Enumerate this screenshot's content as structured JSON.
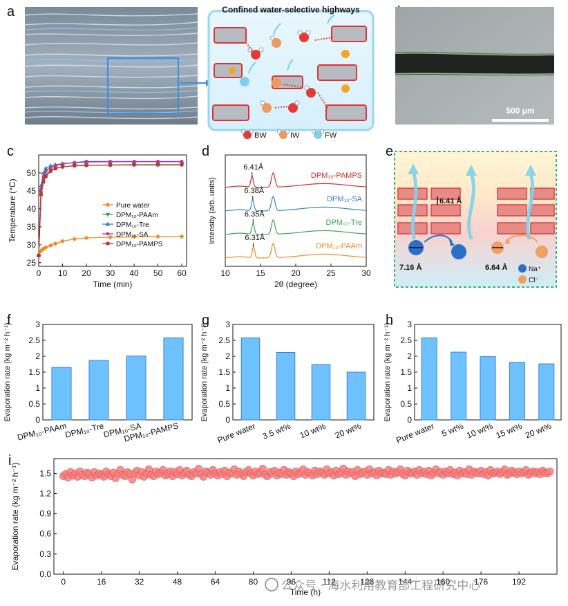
{
  "panels": {
    "a": "a",
    "b": "b",
    "c": "c",
    "d": "d",
    "e": "e",
    "f": "f",
    "g": "g",
    "h": "h",
    "i": "i"
  },
  "panel_a": {
    "title": "Confined water-selective highways",
    "legend": [
      {
        "label": "BW",
        "color": "#e53935"
      },
      {
        "label": "IW",
        "color": "#ef9a5a"
      },
      {
        "label": "FW",
        "color": "#7fd0ee"
      }
    ]
  },
  "panel_b": {
    "scale_bar": "500 μm"
  },
  "panel_e": {
    "spacing_label": "6.41 Å",
    "na_size": "7.16 Å",
    "cl_size": "6.64 Å",
    "legend_na": "Na⁺",
    "legend_cl": "Cl⁻"
  },
  "colors": {
    "orange": "#f08a24",
    "green": "#3aa655",
    "blue": "#3b7fc4",
    "magenta": "#b03a9a",
    "red": "#c8302e",
    "bar_fill": "#6ec2ff",
    "bar_stroke": "#3d7fd6",
    "marker_i": "#f47f7f"
  },
  "chart_data": [
    {
      "id": "c",
      "type": "line",
      "xlabel": "Time (min)",
      "ylabel": "Temperature (°C)",
      "xlim": [
        0,
        62
      ],
      "ylim": [
        24,
        55
      ],
      "xticks": [
        "0",
        "10",
        "20",
        "30",
        "40",
        "50",
        "60"
      ],
      "yticks": [
        "25",
        "30",
        "35",
        "40",
        "45",
        "50"
      ],
      "legend_position": "lower-right",
      "series": [
        {
          "name": "Pure water",
          "color": "#f08a24",
          "marker": "diamond",
          "x": [
            0,
            1,
            2,
            3,
            5,
            7,
            10,
            15,
            20,
            30,
            40,
            50,
            60
          ],
          "y": [
            27.0,
            28.3,
            28.9,
            29.3,
            29.8,
            30.3,
            31.0,
            31.6,
            31.9,
            32.1,
            32.2,
            32.3,
            32.3
          ]
        },
        {
          "name": "DPM₁₀-PAAm",
          "color": "#3aa655",
          "marker": "down-triangle",
          "x": [
            0,
            1,
            2,
            3,
            5,
            7,
            10,
            15,
            20,
            30,
            40,
            50,
            60
          ],
          "y": [
            27.0,
            44.5,
            48.0,
            49.5,
            50.8,
            51.3,
            51.7,
            52.0,
            52.1,
            52.2,
            52.2,
            52.2,
            52.2
          ]
        },
        {
          "name": "DPM₁₀-Tre",
          "color": "#3b7fc4",
          "marker": "up-triangle",
          "x": [
            0,
            1,
            2,
            3,
            5,
            7,
            10,
            15,
            20,
            30,
            40,
            50,
            60
          ],
          "y": [
            27.0,
            46.5,
            50.0,
            51.3,
            52.0,
            52.3,
            52.6,
            52.8,
            53.0,
            53.1,
            53.1,
            53.1,
            53.1
          ]
        },
        {
          "name": "DPM₁₀-SA",
          "color": "#b03a9a",
          "marker": "circle",
          "x": [
            0,
            1,
            2,
            3,
            5,
            7,
            10,
            15,
            20,
            30,
            40,
            50,
            60
          ],
          "y": [
            27.0,
            45.5,
            49.0,
            50.5,
            51.5,
            52.0,
            52.5,
            52.9,
            53.2,
            53.2,
            53.2,
            53.2,
            53.2
          ]
        },
        {
          "name": "DPM₁₀-PAMPS",
          "color": "#c8302e",
          "marker": "square",
          "x": [
            0,
            1,
            2,
            3,
            5,
            7,
            10,
            15,
            20,
            30,
            40,
            50,
            60
          ],
          "y": [
            27.0,
            44.0,
            47.5,
            49.0,
            50.5,
            51.2,
            51.7,
            52.0,
            52.1,
            52.2,
            52.3,
            52.3,
            52.3
          ]
        }
      ]
    },
    {
      "id": "d",
      "type": "line",
      "xlabel": "2θ (degree)",
      "ylabel": "Intensity (arb. units)",
      "xlim": [
        10,
        30
      ],
      "xticks": [
        "10",
        "15",
        "20",
        "25",
        "30"
      ],
      "series": [
        {
          "name": "DPM₁₀-PAMPS",
          "color": "#c8302e",
          "peak1": 13.8,
          "d_label": "6.41Å",
          "offset": 3
        },
        {
          "name": "DPM₁₀-SA",
          "color": "#3b7fc4",
          "peak1": 13.9,
          "d_label": "6.38Å",
          "offset": 2
        },
        {
          "name": "DPM₁₀-Tre",
          "color": "#3aa655",
          "peak1": 13.95,
          "d_label": "6.35Å",
          "offset": 1
        },
        {
          "name": "DPM₁₀-PAAm",
          "color": "#f08a24",
          "peak1": 14.0,
          "d_label": "6.31Å",
          "offset": 0
        }
      ]
    },
    {
      "id": "f",
      "type": "bar",
      "ylabel": "Evaporation rate (kg m⁻² h⁻¹)",
      "ylim": [
        0,
        3
      ],
      "yticks": [
        "0",
        "0.5",
        "1",
        "1.5",
        "2",
        "2.5",
        "3"
      ],
      "categories": [
        "DPM₁₀-PAAm",
        "DPM₁₀-Tre",
        "DPM₁₀-SA",
        "DPM₁₀-PAMPS"
      ],
      "values": [
        1.65,
        1.87,
        2.01,
        2.58
      ]
    },
    {
      "id": "g",
      "type": "bar",
      "ylabel": "Evaporation rate (kg m⁻² h⁻¹)",
      "ylim": [
        0,
        3
      ],
      "yticks": [
        "0",
        "0.5",
        "1",
        "1.5",
        "2",
        "2.5",
        "3"
      ],
      "categories": [
        "Pure water",
        "3.5 wt%",
        "10 wt%",
        "20 wt%"
      ],
      "values": [
        2.58,
        2.12,
        1.74,
        1.5
      ]
    },
    {
      "id": "h",
      "type": "bar",
      "ylabel": "Evaporation rate (kg m⁻² h⁻¹)",
      "ylim": [
        0,
        3
      ],
      "yticks": [
        "0",
        "0.5",
        "1",
        "1.5",
        "2",
        "2.5",
        "3"
      ],
      "categories": [
        "Pure water",
        "5 wt%",
        "10 wt%",
        "15 wt%",
        "20 wt%"
      ],
      "values": [
        2.58,
        2.13,
        1.99,
        1.81,
        1.76
      ]
    },
    {
      "id": "i",
      "type": "scatter",
      "xlabel": "Time (h)",
      "ylabel": "Evaporation rate (kg m⁻² h⁻¹)",
      "xlim": [
        -4,
        208
      ],
      "ylim": [
        0,
        1.72
      ],
      "xticks": [
        "0",
        "16",
        "32",
        "48",
        "64",
        "80",
        "96",
        "112",
        "128",
        "144",
        "160",
        "176",
        "192"
      ],
      "yticks": [
        "0.0",
        "0.3",
        "0.6",
        "0.9",
        "1.2",
        "1.5"
      ],
      "x_start": 0,
      "x_step": 1,
      "y": [
        1.46,
        1.49,
        1.44,
        1.52,
        1.47,
        1.5,
        1.45,
        1.53,
        1.48,
        1.46,
        1.51,
        1.49,
        1.44,
        1.52,
        1.47,
        1.5,
        1.48,
        1.45,
        1.53,
        1.49,
        1.46,
        1.51,
        1.43,
        1.5,
        1.55,
        1.48,
        1.46,
        1.52,
        1.49,
        1.41,
        1.5,
        1.54,
        1.47,
        1.52,
        1.45,
        1.5,
        1.56,
        1.48,
        1.46,
        1.53,
        1.49,
        1.51,
        1.55,
        1.47,
        1.5,
        1.53,
        1.46,
        1.52,
        1.49,
        1.55,
        1.47,
        1.51,
        1.54,
        1.48,
        1.46,
        1.52,
        1.5,
        1.57,
        1.49,
        1.45,
        1.53,
        1.51,
        1.48,
        1.55,
        1.5,
        1.47,
        1.52,
        1.49,
        1.54,
        1.46,
        1.51,
        1.5,
        1.56,
        1.48,
        1.53,
        1.49,
        1.46,
        1.52,
        1.55,
        1.5,
        1.47,
        1.53,
        1.49,
        1.51,
        1.57,
        1.48,
        1.46,
        1.52,
        1.5,
        1.54,
        1.47,
        1.51,
        1.49,
        1.55,
        1.48,
        1.52,
        1.5,
        1.46,
        1.53,
        1.49,
        1.51,
        1.56,
        1.48,
        1.52,
        1.5,
        1.47,
        1.54,
        1.49,
        1.53,
        1.51,
        1.48,
        1.56,
        1.5,
        1.52,
        1.47,
        1.54,
        1.49,
        1.51,
        1.57,
        1.48,
        1.53,
        1.5,
        1.52,
        1.46,
        1.55,
        1.49,
        1.51,
        1.53,
        1.48,
        1.56,
        1.5,
        1.52,
        1.47,
        1.54,
        1.5,
        1.51,
        1.49,
        1.55,
        1.48,
        1.53,
        1.5,
        1.52,
        1.56,
        1.49,
        1.47,
        1.54,
        1.51,
        1.5,
        1.53,
        1.48,
        1.55,
        1.5,
        1.52,
        1.49,
        1.54,
        1.47,
        1.51,
        1.56,
        1.5,
        1.52,
        1.48,
        1.53,
        1.5,
        1.55,
        1.49,
        1.51,
        1.47,
        1.54,
        1.5,
        1.52,
        1.49,
        1.56,
        1.48,
        1.53,
        1.51,
        1.5,
        1.54,
        1.49,
        1.52,
        1.47,
        1.55,
        1.5,
        1.51,
        1.53,
        1.49,
        1.52,
        1.56,
        1.48,
        1.5,
        1.54,
        1.51,
        1.49,
        1.53,
        1.5,
        1.52,
        1.55,
        1.48,
        1.51,
        1.53,
        1.5,
        1.52,
        1.49,
        1.54,
        1.51,
        1.5,
        1.53
      ]
    }
  ],
  "watermark": "公众号 · 海水利用教育部工程研究中心"
}
